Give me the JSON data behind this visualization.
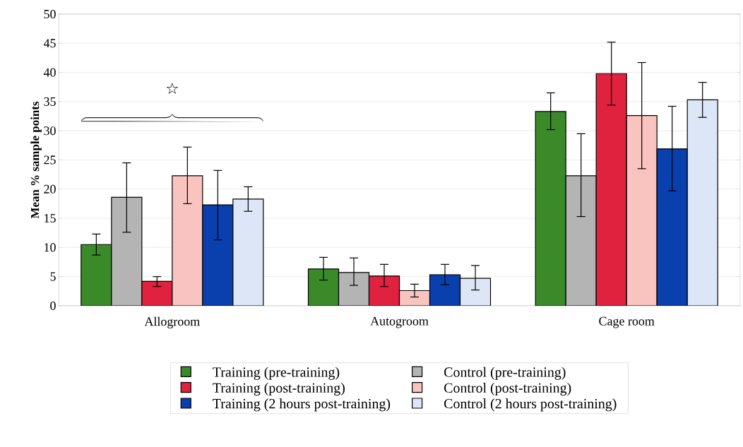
{
  "chart_data": {
    "type": "bar",
    "ylabel": "Mean % sample points",
    "categories": [
      "Allogroom",
      "Autogroom",
      "Cage room"
    ],
    "series": [
      {
        "name": "Training (pre-training)",
        "color": "#3a8a2a",
        "values": [
          10.5,
          6.3,
          33.3
        ],
        "errors": [
          [
            8.7,
            12.3
          ],
          [
            4.4,
            8.3
          ],
          [
            30.2,
            36.5
          ]
        ]
      },
      {
        "name": "Control (pre-training)",
        "color": "#b4b4b4",
        "values": [
          18.6,
          5.7,
          22.3
        ],
        "errors": [
          [
            12.6,
            24.5
          ],
          [
            3.5,
            8.2
          ],
          [
            15.3,
            29.5
          ]
        ]
      },
      {
        "name": "Training (post-training)",
        "color": "#e0223f",
        "values": [
          4.2,
          5.1,
          39.8
        ],
        "errors": [
          [
            3.3,
            5.0
          ],
          [
            3.3,
            7.1
          ],
          [
            34.4,
            45.2
          ]
        ]
      },
      {
        "name": "Control (post-training)",
        "color": "#f9c3bf",
        "values": [
          22.3,
          2.6,
          32.6
        ],
        "errors": [
          [
            17.5,
            27.2
          ],
          [
            1.5,
            3.7
          ],
          [
            23.5,
            41.7
          ]
        ]
      },
      {
        "name": "Training (2 hours post-training)",
        "color": "#0a3fae",
        "values": [
          17.3,
          5.3,
          26.9
        ],
        "errors": [
          [
            11.3,
            23.2
          ],
          [
            3.6,
            7.1
          ],
          [
            19.7,
            34.2
          ]
        ]
      },
      {
        "name": "Control (2 hours post-training)",
        "color": "#dde6f7",
        "values": [
          18.3,
          4.7,
          35.3
        ],
        "errors": [
          [
            16.2,
            20.4
          ],
          [
            2.7,
            6.9
          ],
          [
            32.3,
            38.3
          ]
        ]
      }
    ],
    "ylim": [
      0,
      50
    ],
    "yticks": [
      0,
      5,
      10,
      15,
      20,
      25,
      30,
      35,
      40,
      45,
      50
    ],
    "grid": "y",
    "legend": "bottom",
    "annotations": [
      "☆"
    ]
  }
}
